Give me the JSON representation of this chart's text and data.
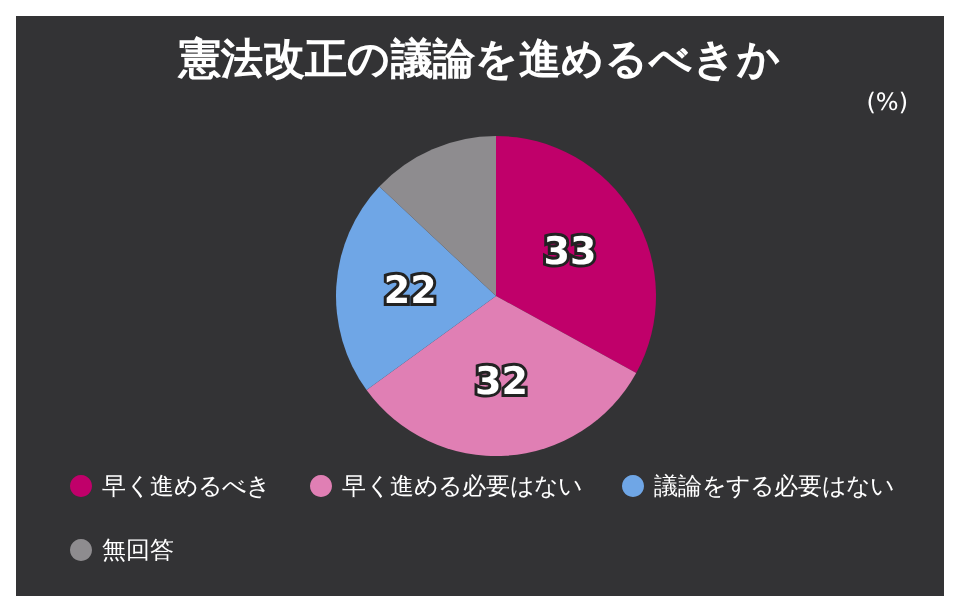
{
  "chart_data": {
    "type": "pie",
    "title": "憲法改正の議論を進めるべきか",
    "annotations": [
      "(%)"
    ],
    "categories": [
      "早く進めるべき",
      "早く進める必要はない",
      "議論をする必要はない",
      "無回答"
    ],
    "values": [
      33,
      32,
      22,
      13
    ],
    "colors": [
      "#c0006a",
      "#e07fb4",
      "#6fa6e6",
      "#8e8c8f"
    ],
    "value_labels": [
      "33",
      "32",
      "22",
      null
    ],
    "legend": "bottom left"
  }
}
